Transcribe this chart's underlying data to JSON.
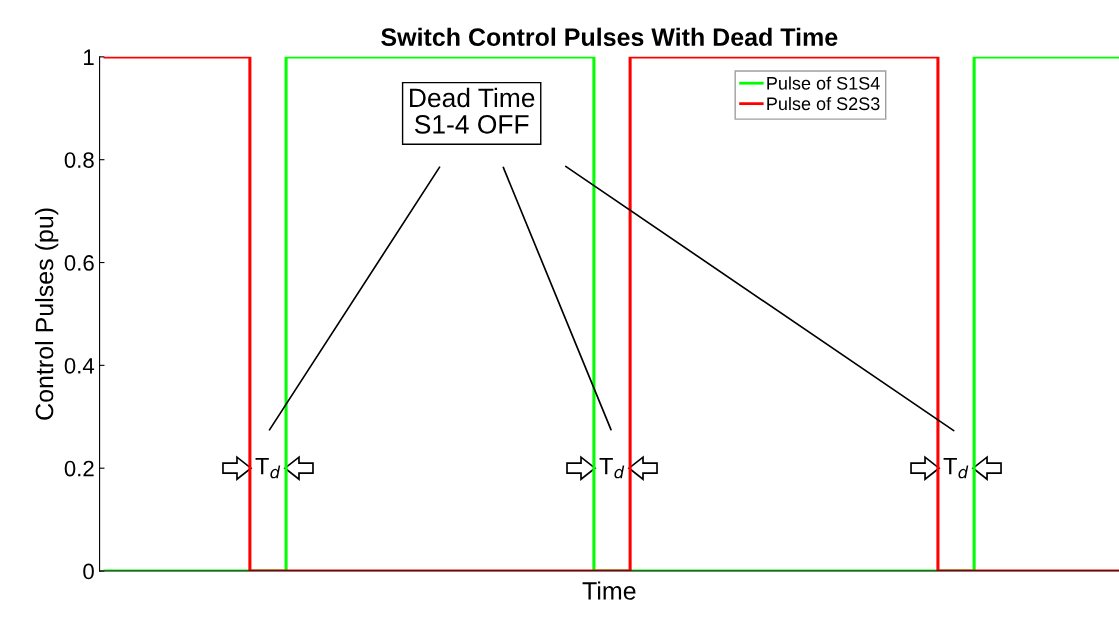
{
  "chart_data": {
    "type": "step",
    "title": "Switch Control Pulses With Dead Time",
    "xlabel": "Time",
    "ylabel": "Control Pulses (pu)",
    "categories": [
      null,
      null,
      null,
      null,
      null,
      null,
      null,
      null,
      null,
      null,
      null,
      null,
      null,
      null,
      null,
      null,
      null,
      null,
      null,
      null,
      null,
      null,
      null,
      null,
      null,
      null,
      null,
      null,
      null,
      null,
      null,
      null,
      null,
      null,
      null,
      null,
      null,
      null,
      null,
      null,
      null,
      null,
      null,
      null,
      null,
      null,
      null,
      null,
      null,
      null,
      null,
      null,
      null,
      null,
      null,
      null,
      null
    ],
    "series": [
      {
        "name": "Pulse of S1S4",
        "color": "#00ff00",
        "values": [
          0,
          0,
          0,
          0,
          0,
          0,
          0,
          0,
          0,
          0,
          1,
          1,
          1,
          1,
          1,
          1,
          1,
          1,
          1,
          1,
          1,
          1,
          1,
          1,
          1,
          1,
          1,
          0,
          0,
          0,
          0,
          0,
          0,
          0,
          0,
          0,
          0,
          0,
          0,
          0,
          0,
          0,
          0,
          0,
          0,
          0,
          0,
          0,
          1,
          1,
          1,
          1,
          1,
          1,
          1,
          1,
          1
        ]
      },
      {
        "name": "Pulse of S2S3",
        "color": "#ff0000",
        "values": [
          1,
          1,
          1,
          1,
          1,
          1,
          1,
          1,
          0,
          0,
          0,
          0,
          0,
          0,
          0,
          0,
          0,
          0,
          0,
          0,
          0,
          0,
          0,
          0,
          0,
          0,
          0,
          0,
          0,
          1,
          1,
          1,
          1,
          1,
          1,
          1,
          1,
          1,
          1,
          1,
          1,
          1,
          1,
          1,
          1,
          1,
          0,
          0,
          0,
          0,
          0,
          0,
          0,
          0,
          0,
          0,
          0
        ]
      }
    ],
    "ylim": [
      0,
      1
    ],
    "yticks": [
      0,
      0.2,
      0.4,
      0.6,
      0.8,
      1
    ],
    "annotations": [
      "Dead Time\nS1-4 OFF",
      "T$_{d}$",
      "T$_{d}$",
      "T$_{d}$"
    ],
    "legend": "top right",
    "grid": false
  }
}
